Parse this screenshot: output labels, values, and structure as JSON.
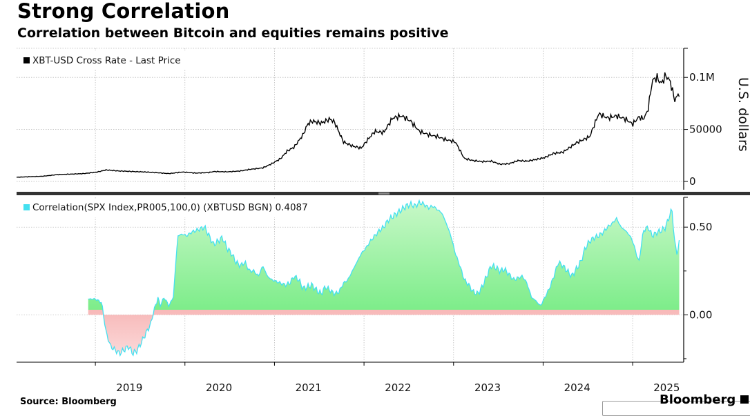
{
  "title": "Strong Correlation",
  "subtitle": "Correlation between Bitcoin and equities remains positive",
  "source": "Source: Bloomberg",
  "brand": "Bloomberg",
  "colors": {
    "price_line": "#000000",
    "corr_pos": "#5ef07a",
    "corr_neg": "#f07070",
    "corr_edge": "#44e0f0"
  },
  "chart_data": [
    {
      "type": "line",
      "title": "XBT-USD Cross Rate - Last Price",
      "legend": "XBT-USD Cross Rate - Last Price",
      "ylabel": "U.S. dollars",
      "ylim": [
        -8000,
        128000
      ],
      "yticks": [
        0,
        50000,
        100000
      ],
      "ytick_labels": [
        "0",
        "50000",
        "0.1M"
      ],
      "xlim": [
        2018.0,
        2025.45
      ],
      "x": [
        2018.0,
        2018.15,
        2018.3,
        2018.45,
        2018.6,
        2018.75,
        2018.9,
        2019.0,
        2019.15,
        2019.3,
        2019.45,
        2019.55,
        2019.7,
        2019.85,
        2020.0,
        2020.15,
        2020.2,
        2020.35,
        2020.5,
        2020.6,
        2020.75,
        2020.85,
        2020.95,
        2021.02,
        2021.1,
        2021.2,
        2021.25,
        2021.3,
        2021.4,
        2021.5,
        2021.55,
        2021.65,
        2021.75,
        2021.85,
        2021.92,
        2022.0,
        2022.1,
        2022.2,
        2022.3,
        2022.4,
        2022.5,
        2022.6,
        2022.7,
        2022.8,
        2022.9,
        2023.0,
        2023.1,
        2023.2,
        2023.3,
        2023.4,
        2023.5,
        2023.6,
        2023.7,
        2023.8,
        2023.9,
        2024.0,
        2024.1,
        2024.2,
        2024.25,
        2024.4,
        2024.5,
        2024.6,
        2024.7,
        2024.8,
        2024.88,
        2024.95,
        2025.0,
        2025.05,
        2025.1,
        2025.15,
        2025.2,
        2025.25,
        2025.3,
        2025.35,
        2025.4
      ],
      "y": [
        4000,
        4500,
        5000,
        6500,
        7000,
        7500,
        9000,
        11000,
        10000,
        9500,
        9000,
        8500,
        7500,
        9000,
        8000,
        8500,
        9500,
        9200,
        10000,
        11500,
        13000,
        17000,
        22000,
        29000,
        33000,
        45000,
        55000,
        58000,
        56000,
        60000,
        57000,
        38000,
        34000,
        32000,
        40000,
        48000,
        47000,
        61000,
        63000,
        58000,
        48000,
        45000,
        43000,
        40000,
        38000,
        22000,
        20000,
        19000,
        19500,
        16500,
        17000,
        20000,
        19500,
        21000,
        23000,
        27000,
        28000,
        34000,
        37000,
        43000,
        65000,
        61000,
        63000,
        60000,
        55000,
        62000,
        60000,
        68000,
        97000,
        100000,
        94000,
        102000,
        96000,
        78000,
        85000
      ],
      "xtick_labels": [
        "2019",
        "2020",
        "2021",
        "2022",
        "2023",
        "2024",
        "2025"
      ]
    },
    {
      "type": "area",
      "title": "Correlation(SPX Index,PR005,100,0) (XBTUSD BGN) 0.4087",
      "legend": "Correlation(SPX Index,PR005,100,0) (XBTUSD BGN) 0.4087",
      "last_value": 0.4087,
      "ylim": [
        -0.27,
        0.67
      ],
      "yticks": [
        0.0,
        0.5
      ],
      "ytick_labels": [
        "0.00",
        "0.50"
      ],
      "xlim": [
        2018.0,
        2025.45
      ],
      "x": [
        2018.8,
        2018.88,
        2018.95,
        2018.97,
        2019.0,
        2019.05,
        2019.1,
        2019.15,
        2019.2,
        2019.25,
        2019.3,
        2019.35,
        2019.4,
        2019.45,
        2019.5,
        2019.52,
        2019.58,
        2019.6,
        2019.65,
        2019.7,
        2019.75,
        2019.8,
        2019.85,
        2019.9,
        2019.95,
        2020.0,
        2020.05,
        2020.1,
        2020.15,
        2020.2,
        2020.25,
        2020.3,
        2020.35,
        2020.4,
        2020.45,
        2020.5,
        2020.55,
        2020.6,
        2020.65,
        2020.7,
        2020.75,
        2020.8,
        2020.85,
        2020.9,
        2020.95,
        2021.0,
        2021.05,
        2021.1,
        2021.15,
        2021.2,
        2021.25,
        2021.3,
        2021.35,
        2021.4,
        2021.45,
        2021.5,
        2021.55,
        2021.6,
        2021.65,
        2021.7,
        2021.75,
        2021.8,
        2021.85,
        2021.9,
        2021.95,
        2022.0,
        2022.05,
        2022.1,
        2022.15,
        2022.2,
        2022.25,
        2022.3,
        2022.35,
        2022.4,
        2022.45,
        2022.5,
        2022.55,
        2022.6,
        2022.65,
        2022.7,
        2022.75,
        2022.8,
        2022.85,
        2022.9,
        2022.95,
        2023.0,
        2023.05,
        2023.1,
        2023.15,
        2023.2,
        2023.25,
        2023.3,
        2023.35,
        2023.4,
        2023.45,
        2023.5,
        2023.55,
        2023.6,
        2023.65,
        2023.7,
        2023.75,
        2023.8,
        2023.85,
        2023.9,
        2023.95,
        2024.0,
        2024.05,
        2024.1,
        2024.15,
        2024.2,
        2024.25,
        2024.3,
        2024.35,
        2024.4,
        2024.45,
        2024.5,
        2024.55,
        2024.6,
        2024.65,
        2024.7,
        2024.75,
        2024.8,
        2024.85,
        2024.88,
        2024.92,
        2024.95,
        2025.0,
        2025.05,
        2025.1,
        2025.15,
        2025.2,
        2025.25,
        2025.28,
        2025.32,
        2025.35,
        2025.38,
        2025.4
      ],
      "y": [
        0.09,
        0.09,
        0.07,
        0.0,
        -0.1,
        -0.18,
        -0.2,
        -0.22,
        -0.2,
        -0.18,
        -0.22,
        -0.2,
        -0.15,
        -0.1,
        -0.05,
        0.0,
        0.1,
        0.05,
        0.1,
        0.05,
        0.1,
        0.45,
        0.46,
        0.45,
        0.47,
        0.48,
        0.49,
        0.5,
        0.45,
        0.4,
        0.42,
        0.44,
        0.38,
        0.35,
        0.3,
        0.28,
        0.3,
        0.25,
        0.25,
        0.22,
        0.28,
        0.22,
        0.2,
        0.19,
        0.18,
        0.17,
        0.18,
        0.22,
        0.2,
        0.15,
        0.16,
        0.17,
        0.14,
        0.12,
        0.16,
        0.14,
        0.12,
        0.13,
        0.18,
        0.2,
        0.25,
        0.3,
        0.35,
        0.38,
        0.42,
        0.45,
        0.48,
        0.5,
        0.54,
        0.56,
        0.58,
        0.6,
        0.62,
        0.63,
        0.62,
        0.64,
        0.63,
        0.61,
        0.62,
        0.6,
        0.58,
        0.52,
        0.45,
        0.35,
        0.28,
        0.2,
        0.17,
        0.13,
        0.12,
        0.16,
        0.22,
        0.28,
        0.27,
        0.25,
        0.26,
        0.23,
        0.2,
        0.21,
        0.22,
        0.18,
        0.1,
        0.08,
        0.05,
        0.1,
        0.15,
        0.22,
        0.3,
        0.28,
        0.25,
        0.22,
        0.26,
        0.3,
        0.38,
        0.42,
        0.44,
        0.45,
        0.47,
        0.5,
        0.52,
        0.55,
        0.5,
        0.48,
        0.45,
        0.42,
        0.35,
        0.3,
        0.48,
        0.5,
        0.45,
        0.47,
        0.48,
        0.5,
        0.55,
        0.6,
        0.4,
        0.35,
        0.41
      ],
      "xtick_labels": [
        "2019",
        "2020",
        "2021",
        "2022",
        "2023",
        "2024",
        "2025"
      ]
    }
  ]
}
